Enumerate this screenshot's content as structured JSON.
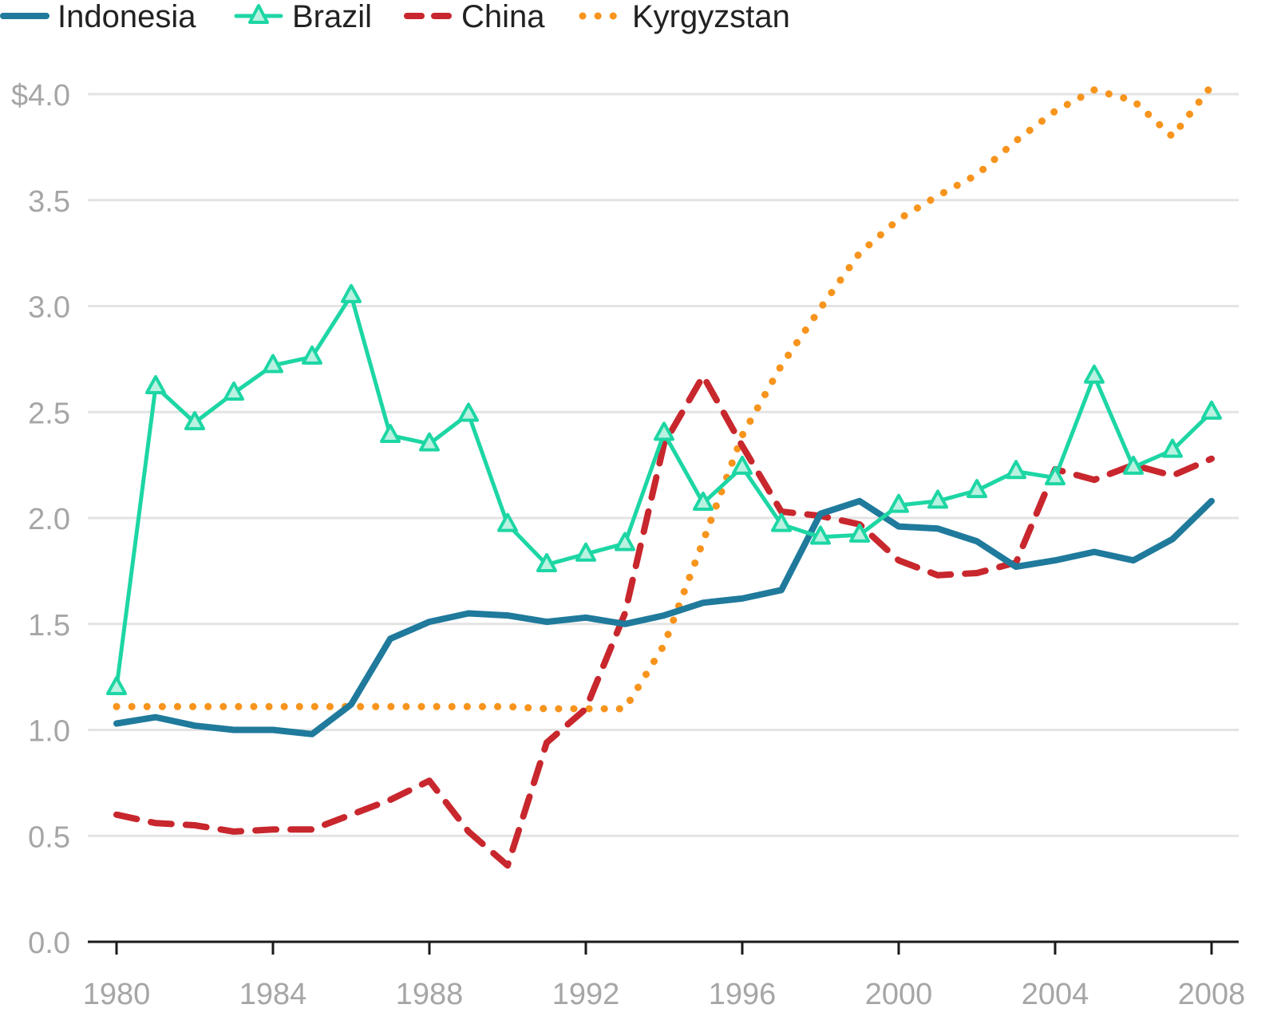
{
  "chart_data": {
    "type": "line",
    "title": "",
    "xlabel": "",
    "ylabel": "",
    "xlim": [
      1980,
      2008
    ],
    "ylim": [
      0,
      4.0
    ],
    "x_ticks": [
      1980,
      1984,
      1988,
      1992,
      1996,
      2000,
      2004,
      2008
    ],
    "x_tick_labels": [
      "1980",
      "1984",
      "1988",
      "1992",
      "1996",
      "2000",
      "2004",
      "2008"
    ],
    "y_ticks": [
      0,
      0.5,
      1.0,
      1.5,
      2.0,
      2.5,
      3.0,
      3.5,
      4.0
    ],
    "y_tick_labels": [
      "0.0",
      "0.5",
      "1.0",
      "1.5",
      "2.0",
      "2.5",
      "3.0",
      "3.5",
      "$4.0"
    ],
    "grid": "horizontal",
    "legend_position": "top-left",
    "x": [
      1980,
      1981,
      1982,
      1983,
      1984,
      1985,
      1986,
      1987,
      1988,
      1989,
      1990,
      1991,
      1992,
      1993,
      1994,
      1995,
      1996,
      1997,
      1998,
      1999,
      2000,
      2001,
      2002,
      2003,
      2004,
      2005,
      2006,
      2007,
      2008
    ],
    "series": [
      {
        "name": "Indonesia",
        "color": "#1f7a9c",
        "style": "solid",
        "marker": "none",
        "values": [
          1.03,
          1.06,
          1.02,
          1.0,
          1.0,
          0.98,
          1.12,
          1.43,
          1.51,
          1.55,
          1.54,
          1.51,
          1.53,
          1.5,
          1.54,
          1.6,
          1.62,
          1.66,
          2.02,
          2.08,
          1.96,
          1.95,
          1.89,
          1.77,
          1.8,
          1.84,
          1.8,
          1.9,
          2.08
        ]
      },
      {
        "name": "Brazil",
        "color": "#1dd6a4",
        "style": "solid",
        "marker": "triangle",
        "values": [
          1.2,
          2.62,
          2.45,
          2.59,
          2.72,
          2.76,
          3.05,
          2.39,
          2.35,
          2.49,
          1.97,
          1.78,
          1.83,
          1.88,
          2.4,
          2.07,
          2.24,
          1.97,
          1.91,
          1.92,
          2.06,
          2.08,
          2.13,
          2.22,
          2.19,
          2.67,
          2.24,
          2.32,
          2.5
        ]
      },
      {
        "name": "China",
        "color": "#c8272d",
        "style": "dashed",
        "marker": "none",
        "values": [
          0.6,
          0.56,
          0.55,
          0.52,
          0.53,
          0.53,
          0.6,
          0.67,
          0.76,
          0.52,
          0.36,
          0.94,
          1.1,
          1.55,
          2.35,
          2.67,
          2.34,
          2.03,
          2.01,
          1.97,
          1.8,
          1.73,
          1.74,
          1.79,
          2.23,
          2.18,
          2.25,
          2.2,
          2.28
        ]
      },
      {
        "name": "Kyrgyzstan",
        "color": "#f7941d",
        "style": "dotted",
        "marker": "none",
        "values": [
          1.11,
          1.11,
          1.11,
          1.11,
          1.11,
          1.11,
          1.11,
          1.11,
          1.11,
          1.11,
          1.11,
          1.1,
          1.1,
          1.1,
          1.4,
          1.89,
          2.39,
          2.72,
          2.99,
          3.25,
          3.41,
          3.52,
          3.62,
          3.78,
          3.92,
          4.02,
          3.97,
          3.8,
          4.04
        ]
      }
    ]
  }
}
